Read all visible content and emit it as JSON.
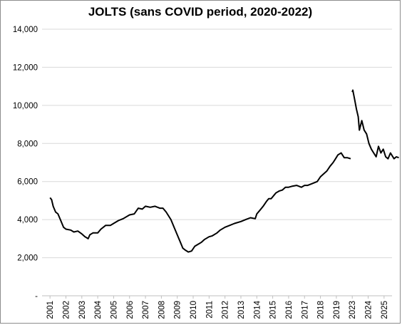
{
  "chart_data": {
    "type": "line",
    "title": "JOLTS (sans COVID period, 2020-2022)",
    "xlabel": "",
    "ylabel": "",
    "ylim": [
      0,
      14000
    ],
    "grid": true,
    "legend": "none",
    "y_ticks": [
      "-",
      "2,000",
      "4,000",
      "6,000",
      "8,000",
      "10,000",
      "12,000",
      "14,000"
    ],
    "x_categories": [
      "2001",
      "2002",
      "2003",
      "2004",
      "2005",
      "2006",
      "2007",
      "2008",
      "2009",
      "2010",
      "2011",
      "2012",
      "2013",
      "2014",
      "2015",
      "2016",
      "2017",
      "2018",
      "2019",
      "2023",
      "2024",
      "2025"
    ],
    "line_color": "#000000",
    "series": [
      {
        "segments": [
          {
            "x": [
              2001.0,
              2001.1,
              2001.2,
              2001.35,
              2001.5,
              2001.65,
              2001.85,
              2002.0,
              2002.3,
              2002.5,
              2002.75,
              2003.0,
              2003.2,
              2003.4,
              2003.5,
              2003.7,
              2004.0,
              2004.2,
              2004.5,
              2004.8,
              2005.0,
              2005.3,
              2005.6,
              2006.0,
              2006.3,
              2006.55,
              2006.8,
              2007.0,
              2007.3,
              2007.6,
              2007.9,
              2008.1,
              2008.3,
              2008.6,
              2008.8,
              2009.0,
              2009.2,
              2009.35,
              2009.5,
              2009.7,
              2009.9,
              2010.1,
              2010.3,
              2010.5,
              2010.7,
              2011.0,
              2011.2,
              2011.5,
              2011.7,
              2012.0,
              2012.3,
              2012.6,
              2013.0,
              2013.3,
              2013.6,
              2013.9,
              2014.0,
              2014.2,
              2014.4,
              2014.6,
              2014.75,
              2014.9,
              2015.0,
              2015.2,
              2015.4,
              2015.6,
              2015.8,
              2016.0,
              2016.2,
              2016.5,
              2016.8,
              2017.0,
              2017.2,
              2017.5,
              2017.8,
              2018.0,
              2018.2,
              2018.4,
              2018.6,
              2018.8,
              2018.95,
              2019.1,
              2019.3,
              2019.5,
              2019.7,
              2019.9
            ],
            "y": [
              5150,
              5050,
              4700,
              4400,
              4300,
              4000,
              3600,
              3500,
              3450,
              3350,
              3400,
              3250,
              3100,
              3000,
              3200,
              3300,
              3300,
              3500,
              3700,
              3700,
              3800,
              3950,
              4050,
              4250,
              4300,
              4600,
              4550,
              4700,
              4650,
              4700,
              4600,
              4600,
              4400,
              4000,
              3600,
              3200,
              2800,
              2500,
              2400,
              2300,
              2350,
              2600,
              2700,
              2800,
              2950,
              3100,
              3150,
              3300,
              3450,
              3600,
              3700,
              3800,
              3900,
              4000,
              4100,
              4050,
              4300,
              4500,
              4700,
              4950,
              5100,
              5100,
              5200,
              5400,
              5500,
              5550,
              5700,
              5700,
              5750,
              5800,
              5700,
              5800,
              5800,
              5900,
              6000,
              6250,
              6400,
              6550,
              6800,
              7000,
              7200,
              7400,
              7500,
              7250,
              7250,
              7200
            ]
          },
          {
            "x": [
              2020.0,
              2020.05,
              2020.2,
              2020.35,
              2020.5,
              2020.6,
              2020.8,
              2021.0,
              2021.2,
              2021.4,
              2021.6,
              2021.8,
              2022.0,
              2022.2,
              2022.4,
              2022.6,
              2022.8,
              2023.0,
              2023.2,
              2023.5,
              2023.7,
              2023.9
            ],
            "y": [
              10700,
              10800,
              10300,
              9800,
              9400,
              8700,
              9200,
              8700,
              8500,
              8000,
              7700,
              7500,
              7300,
              7850,
              7500,
              7700,
              7300,
              7200,
              7500,
              7200,
              7300,
              7250
            ]
          }
        ]
      }
    ]
  }
}
